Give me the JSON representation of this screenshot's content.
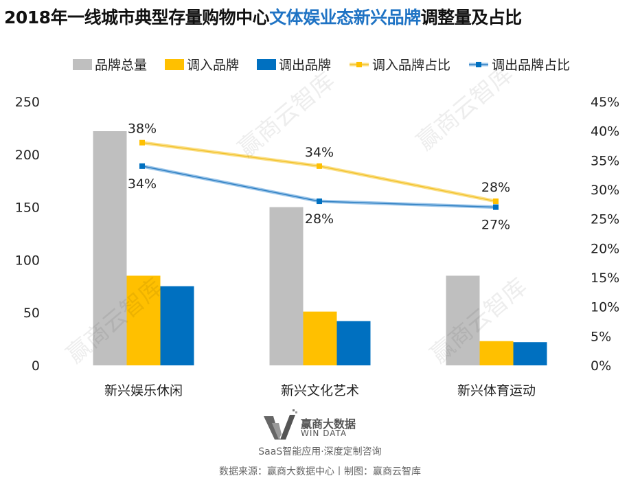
{
  "title": {
    "part1": "2018年一线城市典型存量购物中心",
    "part2": "文体娱业态新兴品牌",
    "part3": "调整量及占比"
  },
  "colors": {
    "total": "#bfbfbf",
    "in": "#ffc000",
    "out": "#0070c0",
    "title_highlight": "#1f73c4",
    "in_line": "#f2c22e",
    "out_line": "#2e7fc2"
  },
  "chart_data": {
    "type": "bar",
    "categories": [
      "新兴娱乐休闲",
      "新兴文化艺术",
      "新兴体育运动"
    ],
    "series": [
      {
        "name": "品牌总量",
        "type": "bar",
        "axis": "left",
        "values": [
          222,
          150,
          85
        ]
      },
      {
        "name": "调入品牌",
        "type": "bar",
        "axis": "left",
        "values": [
          85,
          51,
          23
        ]
      },
      {
        "name": "调出品牌",
        "type": "bar",
        "axis": "left",
        "values": [
          75,
          42,
          22
        ]
      },
      {
        "name": "调入品牌占比",
        "type": "line",
        "axis": "right",
        "values": [
          38,
          34,
          28
        ],
        "labels": [
          "38%",
          "34%",
          "28%"
        ]
      },
      {
        "name": "调出品牌占比",
        "type": "line",
        "axis": "right",
        "values": [
          34,
          28,
          27
        ],
        "labels": [
          "34%",
          "28%",
          "27%"
        ]
      }
    ],
    "y_left": {
      "range": [
        0,
        250
      ],
      "ticks": [
        "0",
        "50",
        "100",
        "150",
        "200",
        "250"
      ]
    },
    "y_right": {
      "range": [
        0,
        45
      ],
      "unit": "%",
      "ticks": [
        "0%",
        "5%",
        "10%",
        "15%",
        "20%",
        "25%",
        "30%",
        "35%",
        "40%",
        "45%"
      ]
    },
    "grid": false,
    "legend": "top"
  },
  "watermark": "赢商云智库",
  "logo": {
    "name": "赢商大数据",
    "sub": "WIN DATA"
  },
  "slogan": "SaaS智能应用·深度定制咨询",
  "source": "数据来源：赢商大数据中心丨制图：赢商云智库"
}
